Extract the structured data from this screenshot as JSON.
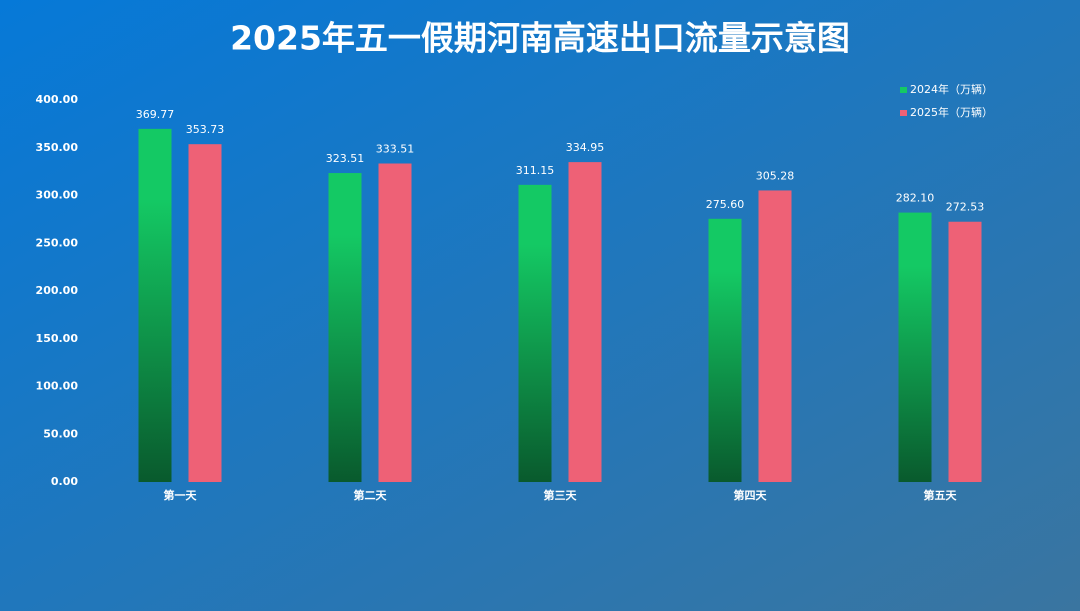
{
  "chart_data": {
    "type": "bar",
    "title": "2025年五一假期河南高速出口流量示意图",
    "categories": [
      "第一天",
      "第二天",
      "第三天",
      "第四天",
      "第五天"
    ],
    "series": [
      {
        "name": "2024年（万辆）",
        "color": "#14c964",
        "gradient": true,
        "values": [
          369.77,
          323.51,
          311.15,
          275.6,
          282.1
        ],
        "value_labels": [
          "369.77",
          "323.51",
          "311.15",
          "275.60",
          "282.10"
        ]
      },
      {
        "name": "2025年（万辆）",
        "color": "#ee6176",
        "gradient": false,
        "values": [
          353.73,
          333.51,
          334.95,
          305.28,
          272.53
        ],
        "value_labels": [
          "353.73",
          "333.51",
          "334.95",
          "305.28",
          "272.53"
        ]
      }
    ],
    "ylim": [
      0,
      400
    ],
    "yticks": [
      {
        "value": 0,
        "label": "0.00"
      },
      {
        "value": 50,
        "label": "50.00"
      },
      {
        "value": 100,
        "label": "100.00"
      },
      {
        "value": 150,
        "label": "150.00"
      },
      {
        "value": 200,
        "label": "200.00"
      },
      {
        "value": 250,
        "label": "250.00"
      },
      {
        "value": 300,
        "label": "300.00"
      },
      {
        "value": 350,
        "label": "350.00"
      },
      {
        "value": 400,
        "label": "400.00"
      }
    ],
    "grid": false,
    "legend": "top-right"
  }
}
